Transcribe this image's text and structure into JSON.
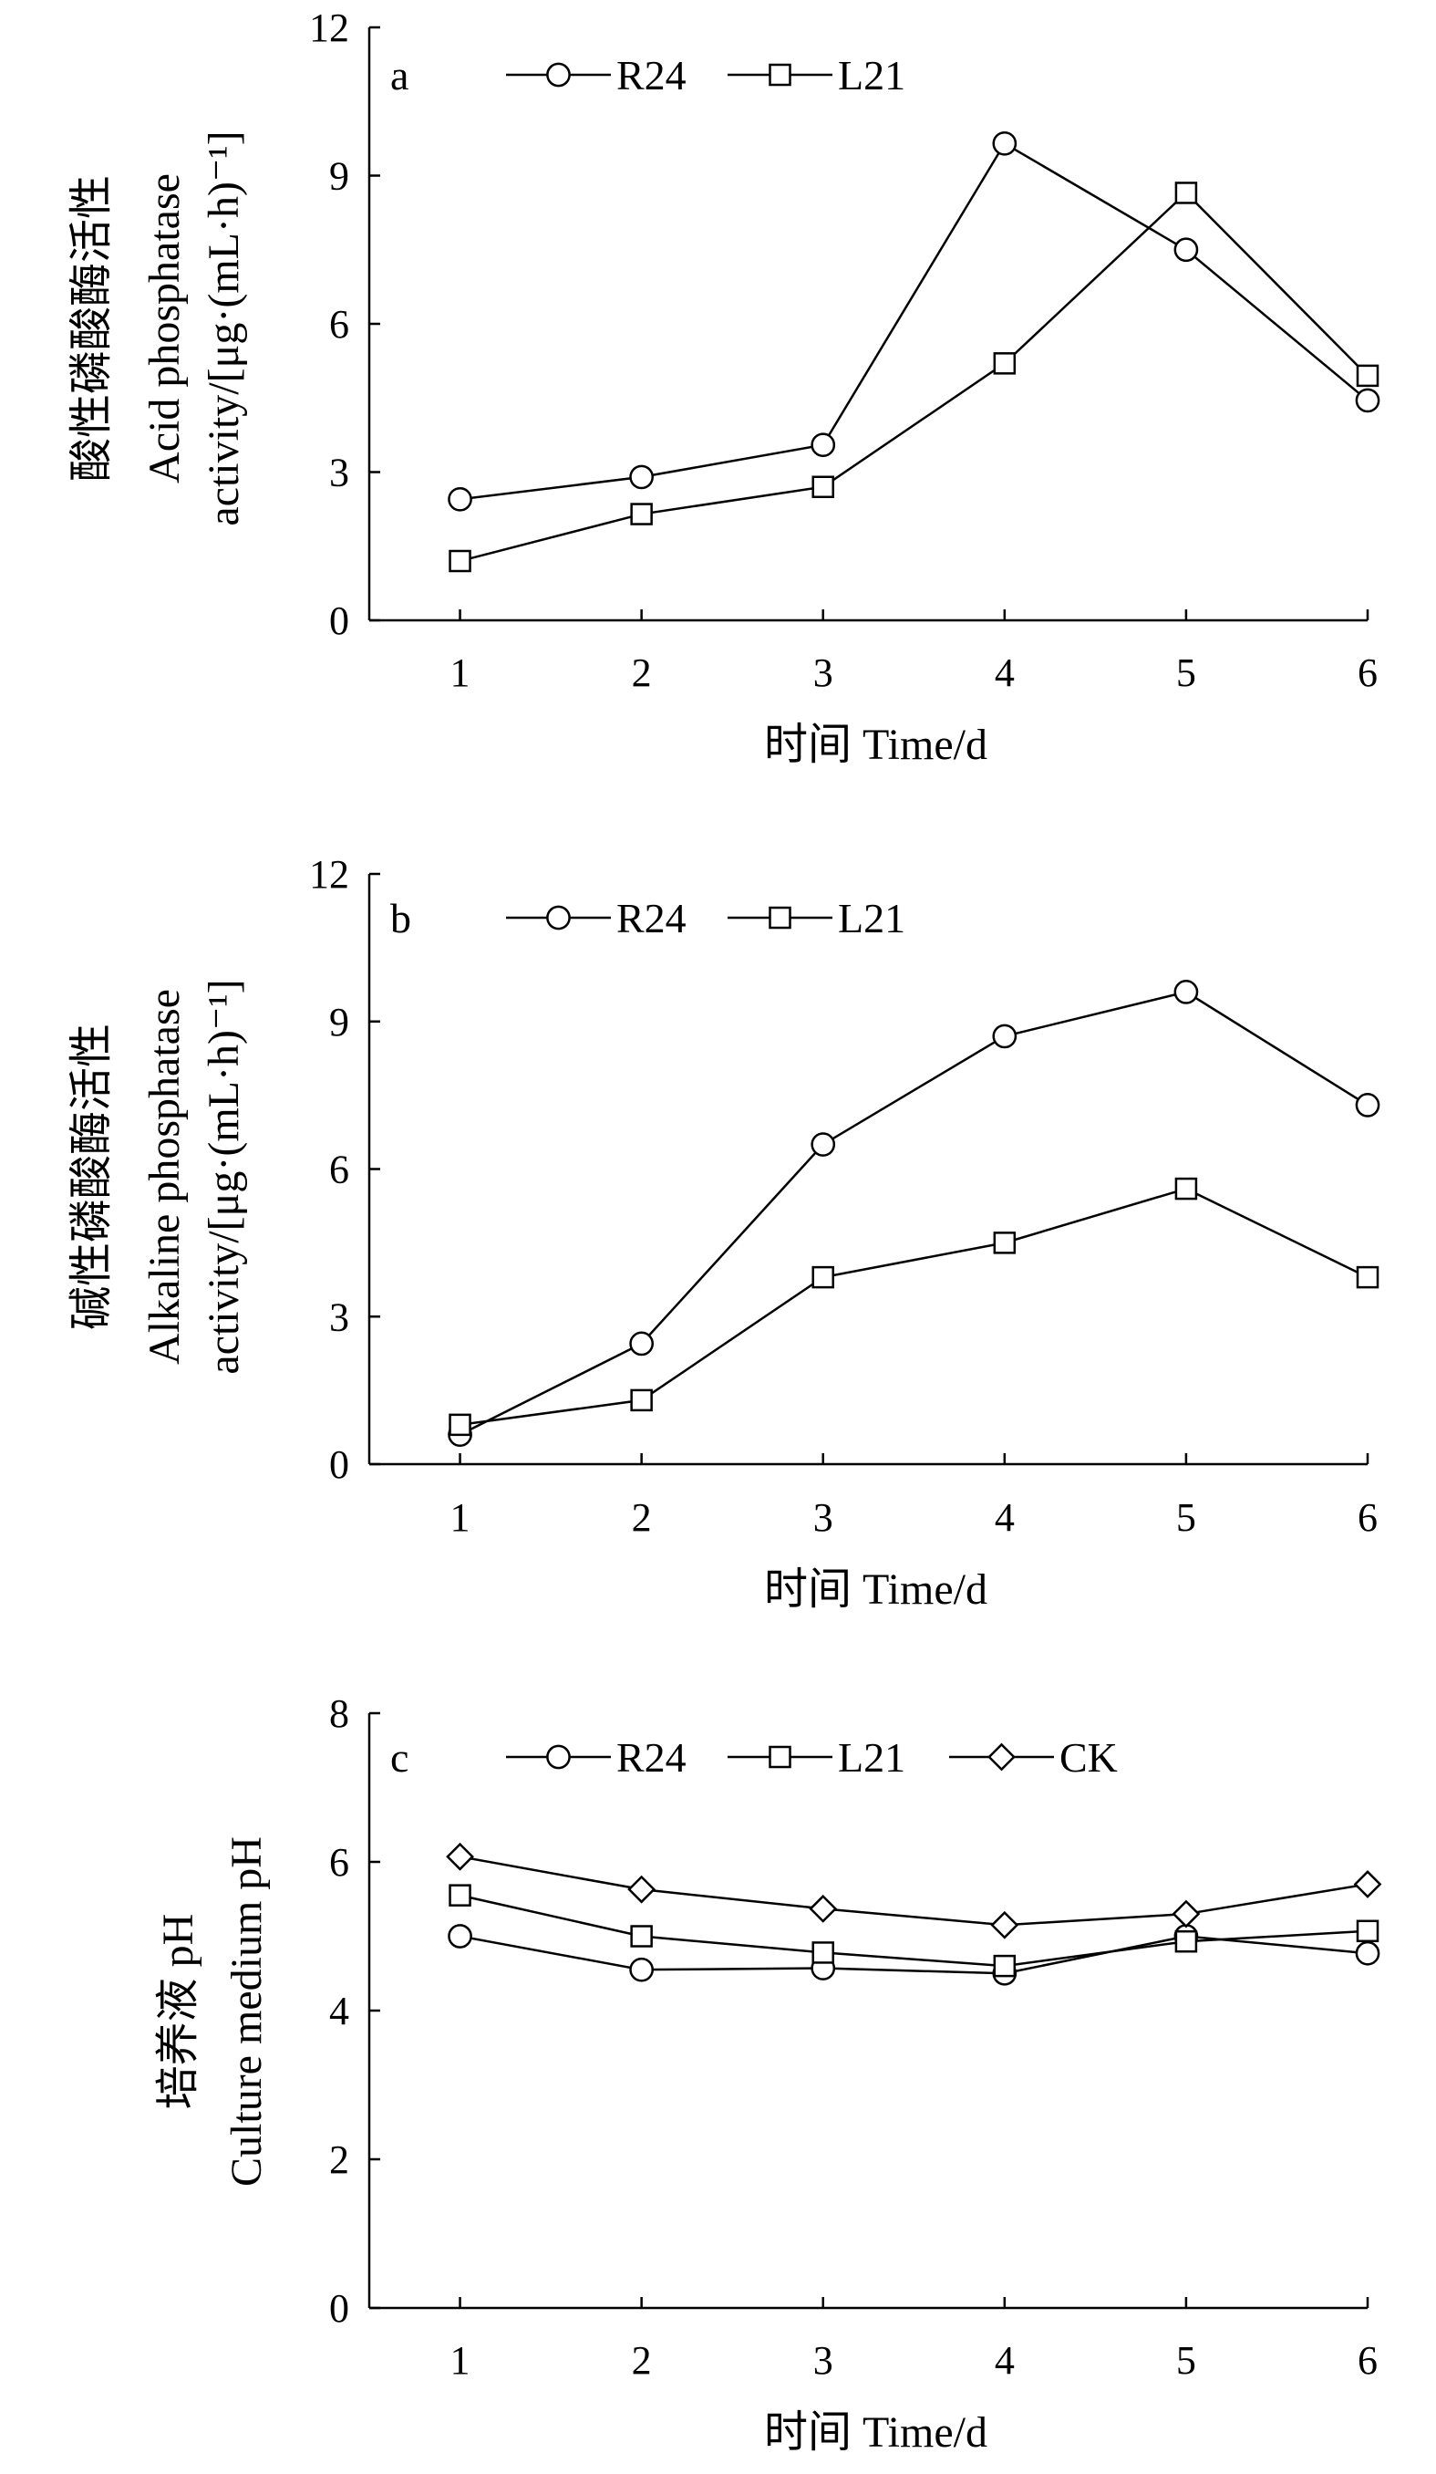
{
  "chart_data": [
    {
      "type": "line",
      "panel_label": "a",
      "x": [
        1,
        2,
        3,
        4,
        5,
        6
      ],
      "series": [
        {
          "name": "R24",
          "marker": "circle",
          "values": [
            2.45,
            2.9,
            3.55,
            9.65,
            7.5,
            4.45
          ]
        },
        {
          "name": "L21",
          "marker": "square",
          "values": [
            1.2,
            2.15,
            2.7,
            5.2,
            8.65,
            4.95
          ]
        }
      ],
      "xlabel": "时间 Time/d",
      "ylabel_lines": [
        "酸性磷酸酶活性",
        "Acid phosphatase",
        "activity/[μg·(mL·h)⁻¹]"
      ],
      "ylim": [
        0,
        12
      ],
      "yticks": [
        0,
        3,
        6,
        9,
        12
      ],
      "xticks": [
        1,
        2,
        3,
        4,
        5,
        6
      ],
      "grid": false,
      "legend_position": "top-left"
    },
    {
      "type": "line",
      "panel_label": "b",
      "x": [
        1,
        2,
        3,
        4,
        5,
        6
      ],
      "series": [
        {
          "name": "R24",
          "marker": "circle",
          "values": [
            0.6,
            2.45,
            6.5,
            8.7,
            9.6,
            7.3
          ]
        },
        {
          "name": "L21",
          "marker": "square",
          "values": [
            0.8,
            1.3,
            3.8,
            4.5,
            5.6,
            3.8
          ]
        }
      ],
      "xlabel": "时间 Time/d",
      "ylabel_lines": [
        "碱性磷酸酶活性",
        "Alkaline phosphatase",
        "activity/[μg·(mL·h)⁻¹]"
      ],
      "ylim": [
        0,
        12
      ],
      "yticks": [
        0,
        3,
        6,
        9,
        12
      ],
      "xticks": [
        1,
        2,
        3,
        4,
        5,
        6
      ],
      "grid": false,
      "legend_position": "top-left"
    },
    {
      "type": "line",
      "panel_label": "c",
      "x": [
        1,
        2,
        3,
        4,
        5,
        6
      ],
      "series": [
        {
          "name": "R24",
          "marker": "circle",
          "values": [
            5.0,
            4.55,
            4.57,
            4.5,
            5.0,
            4.77
          ]
        },
        {
          "name": "L21",
          "marker": "square",
          "values": [
            5.55,
            5.0,
            4.78,
            4.6,
            4.93,
            5.07
          ]
        },
        {
          "name": "CK",
          "marker": "diamond",
          "values": [
            6.07,
            5.63,
            5.37,
            5.15,
            5.3,
            5.7
          ]
        }
      ],
      "xlabel": "时间 Time/d",
      "ylabel_lines": [
        "培养液 pH",
        "Culture medium pH"
      ],
      "ylim": [
        0,
        8
      ],
      "yticks": [
        0,
        2,
        4,
        6,
        8
      ],
      "xticks": [
        1,
        2,
        3,
        4,
        5,
        6
      ],
      "grid": false,
      "legend_position": "top-left"
    }
  ]
}
